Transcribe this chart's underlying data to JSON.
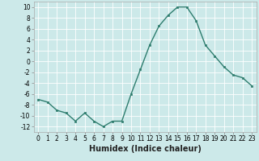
{
  "x": [
    0,
    1,
    2,
    3,
    4,
    5,
    6,
    7,
    8,
    9,
    10,
    11,
    12,
    13,
    14,
    15,
    16,
    17,
    18,
    19,
    20,
    21,
    22,
    23
  ],
  "y": [
    -7,
    -7.5,
    -9,
    -9.5,
    -11,
    -9.5,
    -11,
    -12,
    -11,
    -11,
    -6,
    -1.5,
    3,
    6.5,
    8.5,
    10,
    10,
    7.5,
    3,
    1,
    -1,
    -2.5,
    -3,
    -4.5
  ],
  "line_color": "#2e7d6e",
  "marker": "s",
  "marker_size": 2,
  "xlabel": "Humidex (Indice chaleur)",
  "ylim": [
    -13,
    11
  ],
  "xlim": [
    -0.5,
    23.5
  ],
  "yticks": [
    -12,
    -10,
    -8,
    -6,
    -4,
    -2,
    0,
    2,
    4,
    6,
    8,
    10
  ],
  "xticks": [
    0,
    1,
    2,
    3,
    4,
    5,
    6,
    7,
    8,
    9,
    10,
    11,
    12,
    13,
    14,
    15,
    16,
    17,
    18,
    19,
    20,
    21,
    22,
    23
  ],
  "bg_color": "#cce9e9",
  "grid_color": "#ffffff",
  "line_width": 1.0,
  "tick_fontsize": 5.5,
  "xlabel_fontsize": 7.0
}
